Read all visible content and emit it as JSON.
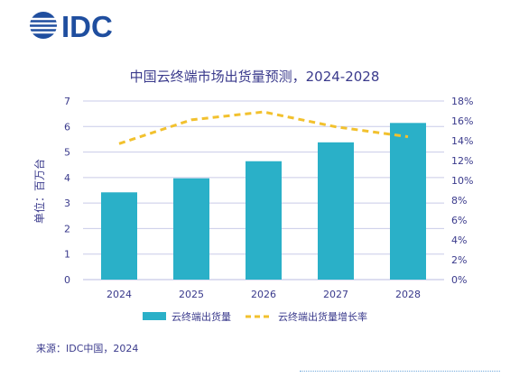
{
  "brand": {
    "logo_text": "IDC",
    "logo_color": "#1f4e9f"
  },
  "chart_data": {
    "type": "bar+line",
    "title": "中国云终端市场出货量预测，2024-2028",
    "categories": [
      "2024",
      "2025",
      "2026",
      "2027",
      "2028"
    ],
    "y_left": {
      "label": "单位：百万台",
      "min": 0,
      "max": 7,
      "ticks": [
        "0",
        "1",
        "2",
        "3",
        "4",
        "5",
        "6",
        "7"
      ]
    },
    "y_right": {
      "min": 0,
      "max": 18,
      "ticks": [
        "0%",
        "2%",
        "4%",
        "6%",
        "8%",
        "10%",
        "12%",
        "14%",
        "16%",
        "18%"
      ]
    },
    "series": [
      {
        "name": "云终端出货量",
        "type": "bar",
        "axis": "left",
        "color": "#2ab0c8",
        "values": [
          3.42,
          3.97,
          4.64,
          5.38,
          6.14
        ]
      },
      {
        "name": "云终端出货量增长率",
        "type": "line",
        "axis": "right",
        "color": "#f2c12e",
        "dashed": true,
        "values": [
          13.7,
          16.1,
          16.9,
          15.4,
          14.4
        ]
      }
    ],
    "grid": true,
    "legend_position": "bottom"
  },
  "footer": {
    "source": "来源：IDC中国，2024"
  }
}
